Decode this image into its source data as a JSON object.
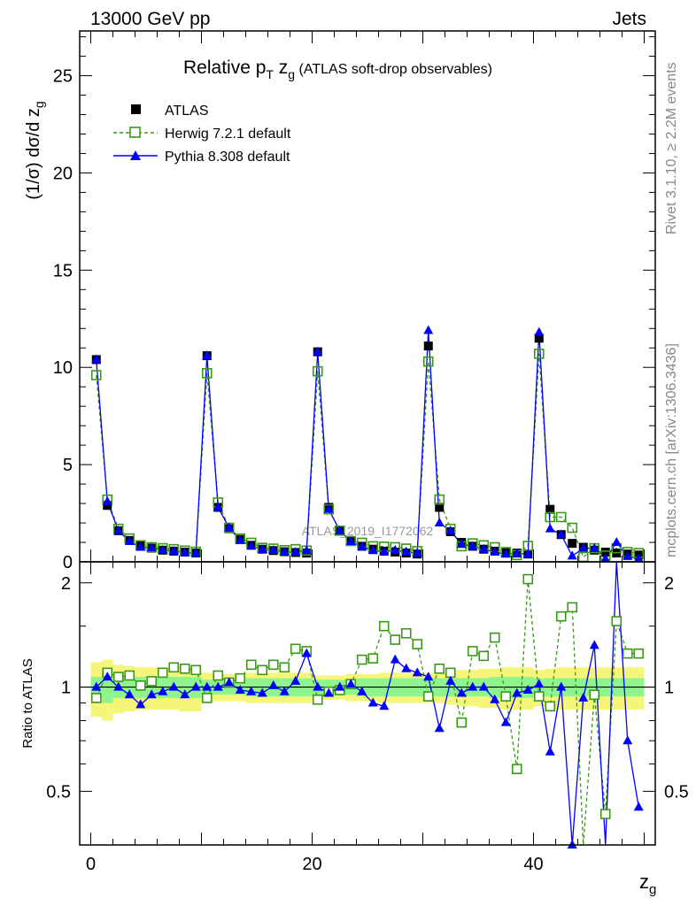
{
  "header": {
    "left": "13000 GeV pp",
    "right": "Jets"
  },
  "side_labels": {
    "rivet": "Rivet 3.1.10, ≥ 2.2M events",
    "mcplots": "mcplots.cern.ch [arXiv:1306.3436]"
  },
  "watermark": "ATLAS_2019_I1772062",
  "colors": {
    "atlas": "#000000",
    "herwig": "#3a9a17",
    "pythia": "#0000ff",
    "band_inner": "#8ef58e",
    "band_outer": "#f5f57a"
  },
  "chart_data": [
    {
      "type": "line",
      "title_main": "Relative p",
      "title_sub": "T",
      "title_var": " z",
      "title_var_sub": "g",
      "title_rest": " (ATLAS soft-drop observables)",
      "ylabel": "(1/σ) dσ/d z",
      "ylabel_sub": "g",
      "xlim": [
        -1,
        51
      ],
      "ylim": [
        0,
        27.3
      ],
      "y_ticks": [
        "0",
        "5",
        "10",
        "15",
        "20",
        "25"
      ],
      "legend": {
        "placement": "top-left",
        "entries": [
          "ATLAS",
          "Herwig 7.2.1 default",
          "Pythia 8.308 default"
        ]
      },
      "x": [
        0.5,
        1.5,
        2.5,
        3.5,
        4.5,
        5.5,
        6.5,
        7.5,
        8.5,
        9.5,
        10.5,
        11.5,
        12.5,
        13.5,
        14.5,
        15.5,
        16.5,
        17.5,
        18.5,
        19.5,
        20.5,
        21.5,
        22.5,
        23.5,
        24.5,
        25.5,
        26.5,
        27.5,
        28.5,
        29.5,
        30.5,
        31.5,
        32.5,
        33.5,
        34.5,
        35.5,
        36.5,
        37.5,
        38.5,
        39.5,
        40.5,
        41.5,
        42.5,
        43.5,
        44.5,
        45.5,
        46.5,
        47.5,
        48.5,
        49.5
      ],
      "series": [
        {
          "name": "ATLAS",
          "values": [
            10.4,
            2.9,
            1.6,
            1.1,
            0.85,
            0.7,
            0.6,
            0.55,
            0.5,
            0.45,
            10.6,
            2.8,
            1.7,
            1.15,
            0.85,
            0.65,
            0.58,
            0.52,
            0.48,
            0.45,
            10.8,
            2.8,
            1.6,
            1.05,
            0.8,
            0.65,
            0.55,
            0.5,
            0.45,
            0.4,
            11.1,
            2.8,
            1.55,
            1.0,
            0.8,
            0.65,
            0.55,
            0.5,
            0.45,
            0.4,
            11.5,
            2.7,
            1.4,
            0.95,
            0.75,
            0.6,
            0.5,
            0.45,
            0.4,
            0.35
          ]
        },
        {
          "name": "Herwig 7.2.1 default",
          "values": [
            9.6,
            3.2,
            1.7,
            1.2,
            0.85,
            0.75,
            0.7,
            0.65,
            0.58,
            0.52,
            9.7,
            3.05,
            1.75,
            1.2,
            0.98,
            0.72,
            0.68,
            0.6,
            0.65,
            0.58,
            9.8,
            2.7,
            1.6,
            1.07,
            0.98,
            0.8,
            0.78,
            0.75,
            0.68,
            0.55,
            10.3,
            3.2,
            1.7,
            0.8,
            0.95,
            0.85,
            0.75,
            0.5,
            0.35,
            0.82,
            10.7,
            2.3,
            2.3,
            1.75,
            0.25,
            0.7,
            0.32,
            0.7,
            0.5,
            0.45
          ]
        },
        {
          "name": "Pythia 8.308 default",
          "values": [
            10.4,
            3.1,
            1.6,
            1.05,
            0.75,
            0.72,
            0.6,
            0.55,
            0.47,
            0.45,
            10.6,
            2.8,
            1.75,
            1.1,
            0.82,
            0.63,
            0.59,
            0.5,
            0.5,
            0.58,
            10.8,
            2.7,
            1.6,
            1.05,
            0.78,
            0.58,
            0.52,
            0.6,
            0.51,
            0.45,
            11.9,
            2.0,
            1.6,
            0.9,
            0.8,
            0.65,
            0.5,
            0.4,
            0.43,
            0.4,
            11.8,
            1.7,
            1.4,
            0.3,
            0.7,
            0.7,
            0.16,
            1.0,
            0.28,
            0.16
          ]
        }
      ]
    },
    {
      "type": "line",
      "ylabel": "Ratio to ATLAS",
      "xlabel": "z",
      "xlabel_sub": "g",
      "xlim": [
        -1,
        51
      ],
      "ylim": [
        0.35,
        2.3
      ],
      "y_ticks": [
        "0.5",
        "1",
        "2"
      ],
      "x_ticks": [
        "0",
        "20",
        "40"
      ],
      "x": [
        0.5,
        1.5,
        2.5,
        3.5,
        4.5,
        5.5,
        6.5,
        7.5,
        8.5,
        9.5,
        10.5,
        11.5,
        12.5,
        13.5,
        14.5,
        15.5,
        16.5,
        17.5,
        18.5,
        19.5,
        20.5,
        21.5,
        22.5,
        23.5,
        24.5,
        25.5,
        26.5,
        27.5,
        28.5,
        29.5,
        30.5,
        31.5,
        32.5,
        33.5,
        34.5,
        35.5,
        36.5,
        37.5,
        38.5,
        39.5,
        40.5,
        41.5,
        42.5,
        43.5,
        44.5,
        45.5,
        46.5,
        47.5,
        48.5,
        49.5
      ],
      "bands": {
        "inner": [
          0.07,
          0.1,
          0.07,
          0.07,
          0.07,
          0.07,
          0.07,
          0.07,
          0.07,
          0.07,
          0.05,
          0.05,
          0.05,
          0.05,
          0.06,
          0.06,
          0.06,
          0.06,
          0.06,
          0.06,
          0.05,
          0.05,
          0.05,
          0.05,
          0.06,
          0.06,
          0.06,
          0.06,
          0.06,
          0.06,
          0.06,
          0.06,
          0.06,
          0.06,
          0.06,
          0.06,
          0.07,
          0.07,
          0.07,
          0.07,
          0.06,
          0.06,
          0.06,
          0.06,
          0.06,
          0.06,
          0.06,
          0.06,
          0.06,
          0.06
        ],
        "outer": [
          0.18,
          0.2,
          0.16,
          0.15,
          0.14,
          0.14,
          0.14,
          0.14,
          0.15,
          0.15,
          0.1,
          0.09,
          0.09,
          0.09,
          0.1,
          0.1,
          0.1,
          0.1,
          0.1,
          0.1,
          0.08,
          0.08,
          0.08,
          0.09,
          0.09,
          0.09,
          0.1,
          0.1,
          0.1,
          0.1,
          0.1,
          0.1,
          0.11,
          0.12,
          0.12,
          0.13,
          0.13,
          0.14,
          0.14,
          0.14,
          0.12,
          0.13,
          0.14,
          0.14,
          0.14,
          0.14,
          0.14,
          0.14,
          0.14,
          0.14
        ]
      },
      "series": [
        {
          "name": "Herwig 7.2.1 default",
          "values": [
            0.93,
            1.1,
            1.07,
            1.08,
            1.01,
            1.04,
            1.1,
            1.14,
            1.13,
            1.12,
            0.93,
            1.08,
            1.03,
            1.06,
            1.16,
            1.12,
            1.16,
            1.14,
            1.29,
            1.27,
            0.92,
            0.97,
            0.98,
            1.02,
            1.2,
            1.21,
            1.5,
            1.37,
            1.43,
            1.33,
            0.94,
            1.13,
            1.1,
            0.79,
            1.27,
            1.23,
            1.39,
            0.94,
            0.58,
            2.05,
            0.94,
            0.88,
            1.6,
            1.7,
            0.33,
            0.95,
            0.43,
            1.55,
            1.25,
            1.25
          ]
        },
        {
          "name": "Pythia 8.308 default",
          "values": [
            1.0,
            1.07,
            1.0,
            0.95,
            0.89,
            0.95,
            0.97,
            1.0,
            0.95,
            1.0,
            1.0,
            1.0,
            1.03,
            0.98,
            0.97,
            0.96,
            1.01,
            0.97,
            1.04,
            1.25,
            1.0,
            0.96,
            1.0,
            1.02,
            0.97,
            0.9,
            0.88,
            1.2,
            1.13,
            1.1,
            1.07,
            0.76,
            1.04,
            0.96,
            1.0,
            1.0,
            0.92,
            0.79,
            0.96,
            0.98,
            1.02,
            0.65,
            1.0,
            0.35,
            0.93,
            1.32,
            0.3,
            2.35,
            0.7,
            0.45
          ]
        }
      ]
    }
  ]
}
